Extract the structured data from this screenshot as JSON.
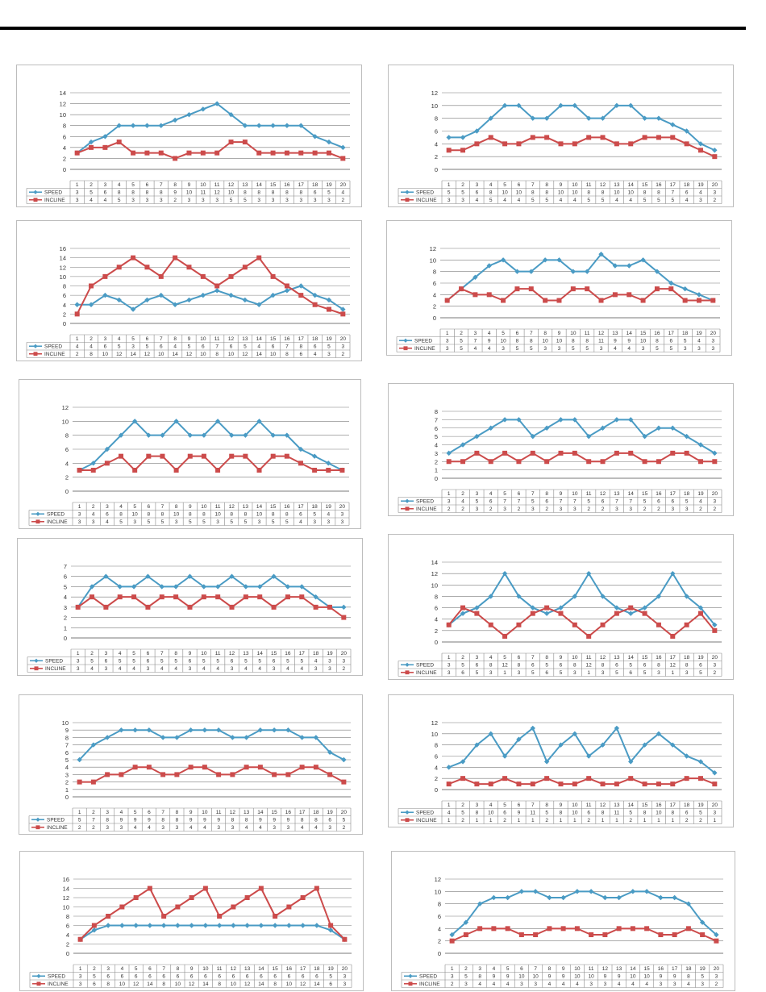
{
  "stray_mark": ",",
  "colors": {
    "speed": "#4a9bc4",
    "incline": "#cc4b4b",
    "grid": "#7a7a7a",
    "table": "#8a8a8a",
    "text": "#333333"
  },
  "chart_data": [
    {
      "type": "line",
      "x": [
        1,
        2,
        3,
        4,
        5,
        6,
        7,
        8,
        9,
        10,
        11,
        12,
        13,
        14,
        15,
        16,
        17,
        18,
        19,
        20
      ],
      "ylim": [
        0,
        14
      ],
      "yticks": [
        0,
        2,
        4,
        6,
        8,
        10,
        12,
        14
      ],
      "series": [
        {
          "name": "SPEED",
          "values": [
            3,
            5,
            6,
            8,
            8,
            8,
            8,
            9,
            10,
            11,
            12,
            10,
            8,
            8,
            8,
            8,
            8,
            6,
            5,
            4
          ]
        },
        {
          "name": "INCLINE",
          "values": [
            3,
            4,
            4,
            5,
            3,
            3,
            3,
            2,
            3,
            3,
            3,
            5,
            5,
            3,
            3,
            3,
            3,
            3,
            3,
            2
          ]
        }
      ]
    },
    {
      "type": "line",
      "x": [
        1,
        2,
        3,
        4,
        5,
        6,
        7,
        8,
        9,
        10,
        11,
        12,
        13,
        14,
        15,
        16,
        17,
        18,
        19,
        20
      ],
      "ylim": [
        0,
        12
      ],
      "yticks": [
        0,
        2,
        4,
        6,
        8,
        10,
        12
      ],
      "series": [
        {
          "name": "SPEED",
          "values": [
            5,
            5,
            6,
            8,
            10,
            10,
            8,
            8,
            10,
            10,
            8,
            8,
            10,
            10,
            8,
            8,
            7,
            6,
            4,
            3
          ]
        },
        {
          "name": "INCLINE",
          "values": [
            3,
            3,
            4,
            5,
            4,
            4,
            5,
            5,
            4,
            4,
            5,
            5,
            4,
            4,
            5,
            5,
            5,
            4,
            3,
            2
          ]
        }
      ]
    },
    {
      "type": "line",
      "x": [
        1,
        2,
        3,
        4,
        5,
        6,
        7,
        8,
        9,
        10,
        11,
        12,
        13,
        14,
        15,
        16,
        17,
        18,
        19,
        20
      ],
      "ylim": [
        0,
        16
      ],
      "yticks": [
        0,
        2,
        4,
        6,
        8,
        10,
        12,
        14,
        16
      ],
      "series": [
        {
          "name": "SPEED",
          "values": [
            4,
            4,
            6,
            5,
            3,
            5,
            6,
            4,
            5,
            6,
            7,
            6,
            5,
            4,
            6,
            7,
            8,
            6,
            5,
            3
          ]
        },
        {
          "name": "INCLINE",
          "values": [
            2,
            8,
            10,
            12,
            14,
            12,
            10,
            14,
            12,
            10,
            8,
            10,
            12,
            14,
            10,
            8,
            6,
            4,
            3,
            2
          ]
        }
      ]
    },
    {
      "type": "line",
      "x": [
        1,
        2,
        3,
        4,
        5,
        6,
        7,
        8,
        9,
        10,
        11,
        12,
        13,
        14,
        15,
        16,
        17,
        18,
        19,
        20
      ],
      "ylim": [
        0,
        12
      ],
      "yticks": [
        0,
        2,
        4,
        6,
        8,
        10,
        12
      ],
      "series": [
        {
          "name": "SPEED",
          "values": [
            3,
            5,
            7,
            9,
            10,
            8,
            8,
            10,
            10,
            8,
            8,
            11,
            9,
            9,
            10,
            8,
            6,
            5,
            4,
            3
          ]
        },
        {
          "name": "INCLINE",
          "values": [
            3,
            5,
            4,
            4,
            3,
            5,
            5,
            3,
            3,
            5,
            5,
            3,
            4,
            4,
            3,
            5,
            5,
            3,
            3,
            3
          ]
        }
      ]
    },
    {
      "type": "line",
      "x": [
        1,
        2,
        3,
        4,
        5,
        6,
        7,
        8,
        9,
        10,
        11,
        12,
        13,
        14,
        15,
        16,
        17,
        18,
        19,
        20
      ],
      "ylim": [
        0,
        12
      ],
      "yticks": [
        0,
        2,
        4,
        6,
        8,
        10,
        12
      ],
      "series": [
        {
          "name": "SPEED",
          "values": [
            3,
            4,
            6,
            8,
            10,
            8,
            8,
            10,
            8,
            8,
            10,
            8,
            8,
            10,
            8,
            8,
            6,
            5,
            4,
            3
          ]
        },
        {
          "name": "INCLINE",
          "values": [
            3,
            3,
            4,
            5,
            3,
            5,
            5,
            3,
            5,
            5,
            3,
            5,
            5,
            3,
            5,
            5,
            4,
            3,
            3,
            3
          ]
        }
      ]
    },
    {
      "type": "line",
      "x": [
        1,
        2,
        3,
        4,
        5,
        6,
        7,
        8,
        9,
        10,
        11,
        12,
        13,
        14,
        15,
        16,
        17,
        18,
        19,
        20
      ],
      "ylim": [
        0,
        8
      ],
      "yticks": [
        0,
        1,
        2,
        3,
        4,
        5,
        6,
        7,
        8
      ],
      "series": [
        {
          "name": "SPEED",
          "values": [
            3,
            4,
            5,
            6,
            7,
            7,
            5,
            6,
            7,
            7,
            5,
            6,
            7,
            7,
            5,
            6,
            6,
            5,
            4,
            3
          ]
        },
        {
          "name": "INCLINE",
          "values": [
            2,
            2,
            3,
            2,
            3,
            2,
            3,
            2,
            3,
            3,
            2,
            2,
            3,
            3,
            2,
            2,
            3,
            3,
            2,
            2
          ]
        }
      ]
    },
    {
      "type": "line",
      "x": [
        1,
        2,
        3,
        4,
        5,
        6,
        7,
        8,
        9,
        10,
        11,
        12,
        13,
        14,
        15,
        16,
        17,
        18,
        19,
        20
      ],
      "ylim": [
        0,
        7
      ],
      "yticks": [
        0,
        1,
        2,
        3,
        4,
        5,
        6,
        7
      ],
      "series": [
        {
          "name": "SPEED",
          "values": [
            3,
            5,
            6,
            5,
            5,
            6,
            5,
            5,
            6,
            5,
            5,
            6,
            5,
            5,
            6,
            5,
            5,
            4,
            3,
            3
          ]
        },
        {
          "name": "INCLINE",
          "values": [
            3,
            4,
            3,
            4,
            4,
            3,
            4,
            4,
            3,
            4,
            4,
            3,
            4,
            4,
            3,
            4,
            4,
            3,
            3,
            2
          ]
        }
      ]
    },
    {
      "type": "line",
      "x": [
        1,
        2,
        3,
        4,
        5,
        6,
        7,
        8,
        9,
        10,
        11,
        12,
        13,
        14,
        15,
        16,
        17,
        18,
        19,
        20
      ],
      "ylim": [
        0,
        14
      ],
      "yticks": [
        0,
        2,
        4,
        6,
        8,
        10,
        12,
        14
      ],
      "series": [
        {
          "name": "SPEED",
          "values": [
            3,
            5,
            6,
            8,
            12,
            8,
            6,
            5,
            6,
            8,
            12,
            8,
            6,
            5,
            6,
            8,
            12,
            8,
            6,
            3
          ]
        },
        {
          "name": "INCLINE",
          "values": [
            3,
            6,
            5,
            3,
            1,
            3,
            5,
            6,
            5,
            3,
            1,
            3,
            5,
            6,
            5,
            3,
            1,
            3,
            5,
            2
          ]
        }
      ]
    },
    {
      "type": "line",
      "x": [
        1,
        2,
        3,
        4,
        5,
        6,
        7,
        8,
        9,
        10,
        11,
        12,
        13,
        14,
        15,
        16,
        17,
        18,
        19,
        20
      ],
      "ylim": [
        0,
        10
      ],
      "yticks": [
        0,
        1,
        2,
        3,
        4,
        5,
        6,
        7,
        8,
        9,
        10
      ],
      "series": [
        {
          "name": "SPEED",
          "values": [
            5,
            7,
            8,
            9,
            9,
            9,
            8,
            8,
            9,
            9,
            9,
            8,
            8,
            9,
            9,
            9,
            8,
            8,
            6,
            5
          ]
        },
        {
          "name": "INCLINE",
          "values": [
            2,
            2,
            3,
            3,
            4,
            4,
            3,
            3,
            4,
            4,
            3,
            3,
            4,
            4,
            3,
            3,
            4,
            4,
            3,
            2
          ]
        }
      ]
    },
    {
      "type": "line",
      "x": [
        1,
        2,
        3,
        4,
        5,
        6,
        7,
        8,
        9,
        10,
        11,
        12,
        13,
        14,
        15,
        16,
        17,
        18,
        19,
        20
      ],
      "ylim": [
        0,
        12
      ],
      "yticks": [
        0,
        2,
        4,
        6,
        8,
        10,
        12
      ],
      "series": [
        {
          "name": "SPEED",
          "values": [
            4,
            5,
            8,
            10,
            6,
            9,
            11,
            5,
            8,
            10,
            6,
            8,
            11,
            5,
            8,
            10,
            8,
            6,
            5,
            3
          ]
        },
        {
          "name": "INCLINE",
          "values": [
            1,
            2,
            1,
            1,
            2,
            1,
            1,
            2,
            1,
            1,
            2,
            1,
            1,
            2,
            1,
            1,
            1,
            2,
            2,
            1
          ]
        }
      ]
    },
    {
      "type": "line",
      "x": [
        1,
        2,
        3,
        4,
        5,
        6,
        7,
        8,
        9,
        10,
        11,
        12,
        13,
        14,
        15,
        16,
        17,
        18,
        19,
        20
      ],
      "ylim": [
        0,
        16
      ],
      "yticks": [
        0,
        2,
        4,
        6,
        8,
        10,
        12,
        14,
        16
      ],
      "series": [
        {
          "name": "SPEED",
          "values": [
            3,
            5,
            6,
            6,
            6,
            6,
            6,
            6,
            6,
            6,
            6,
            6,
            6,
            6,
            6,
            6,
            6,
            6,
            5,
            3
          ]
        },
        {
          "name": "INCLINE",
          "values": [
            3,
            6,
            8,
            10,
            12,
            14,
            8,
            10,
            12,
            14,
            8,
            10,
            12,
            14,
            8,
            10,
            12,
            14,
            6,
            3
          ]
        }
      ]
    },
    {
      "type": "line",
      "x": [
        1,
        2,
        3,
        4,
        5,
        6,
        7,
        8,
        9,
        10,
        11,
        12,
        13,
        14,
        15,
        16,
        17,
        18,
        19,
        20
      ],
      "ylim": [
        0,
        12
      ],
      "yticks": [
        0,
        2,
        4,
        6,
        8,
        10,
        12
      ],
      "series": [
        {
          "name": "SPEED",
          "values": [
            3,
            5,
            8,
            9,
            9,
            10,
            10,
            9,
            9,
            10,
            10,
            9,
            9,
            10,
            10,
            9,
            9,
            8,
            5,
            3
          ]
        },
        {
          "name": "INCLINE",
          "values": [
            2,
            3,
            4,
            4,
            4,
            3,
            3,
            4,
            4,
            4,
            3,
            3,
            4,
            4,
            4,
            3,
            3,
            4,
            3,
            2
          ]
        }
      ]
    }
  ]
}
